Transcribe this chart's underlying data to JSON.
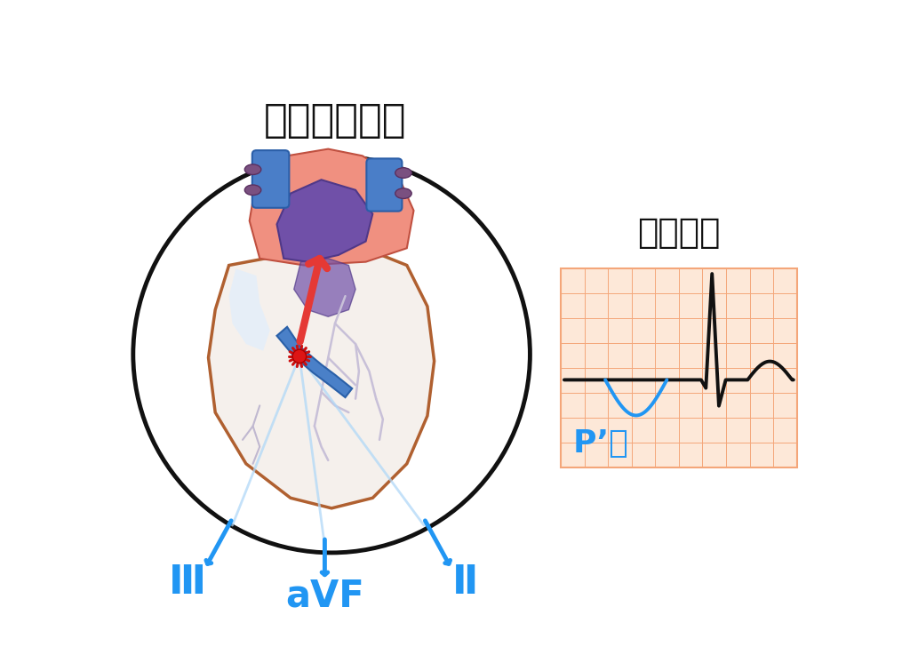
{
  "title": "冠静脈洞調律",
  "ecg_title": "下壁誘導",
  "p_wave_label": "P’波",
  "label_III": "Ⅲ",
  "label_aVF": "aVF",
  "label_II": "Ⅱ",
  "bg_color": "#ffffff",
  "heart_circle_color": "#111111",
  "arrow_color": "#2196F3",
  "red_arrow_color": "#e53935",
  "ecg_bg_color": "#fde8d8",
  "ecg_grid_color": "#f4a67a",
  "ecg_line_color": "#111111",
  "p_wave_color": "#2196F3",
  "title_fontsize": 32,
  "ecg_title_fontsize": 28,
  "label_fontsize": 26,
  "p_label_fontsize": 22
}
